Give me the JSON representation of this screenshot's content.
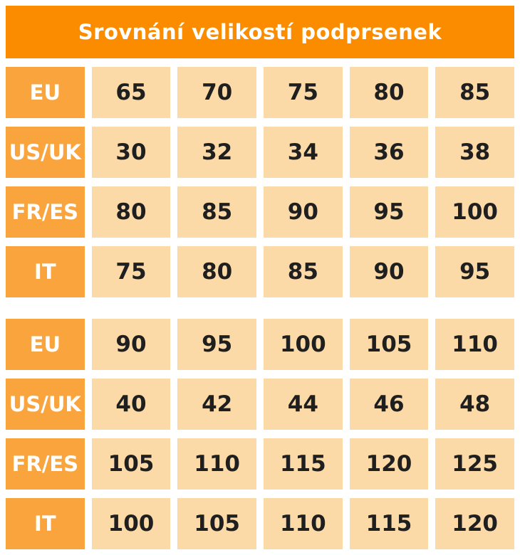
{
  "colors": {
    "header_bg": "#FB8C00",
    "label_bg": "#F9A43C",
    "value_bg": "#FBDAA7",
    "value_text": "#1F1F1F",
    "label_text": "#FFFFFF",
    "page_bg": "#FFFFFF"
  },
  "chart_data": {
    "type": "table",
    "title": "Srovnání velikostí podprsenek",
    "row_headers": [
      "EU",
      "US/UK",
      "FR/ES",
      "IT"
    ],
    "blocks": [
      {
        "rows": [
          {
            "label": "EU",
            "values": [
              65,
              70,
              75,
              80,
              85
            ]
          },
          {
            "label": "US/UK",
            "values": [
              30,
              32,
              34,
              36,
              38
            ]
          },
          {
            "label": "FR/ES",
            "values": [
              80,
              85,
              90,
              95,
              100
            ]
          },
          {
            "label": "IT",
            "values": [
              75,
              80,
              85,
              90,
              95
            ]
          }
        ]
      },
      {
        "rows": [
          {
            "label": "EU",
            "values": [
              90,
              95,
              100,
              105,
              110
            ]
          },
          {
            "label": "US/UK",
            "values": [
              40,
              42,
              44,
              46,
              48
            ]
          },
          {
            "label": "FR/ES",
            "values": [
              105,
              110,
              115,
              120,
              125
            ]
          },
          {
            "label": "IT",
            "values": [
              100,
              105,
              110,
              115,
              120
            ]
          }
        ]
      }
    ]
  }
}
